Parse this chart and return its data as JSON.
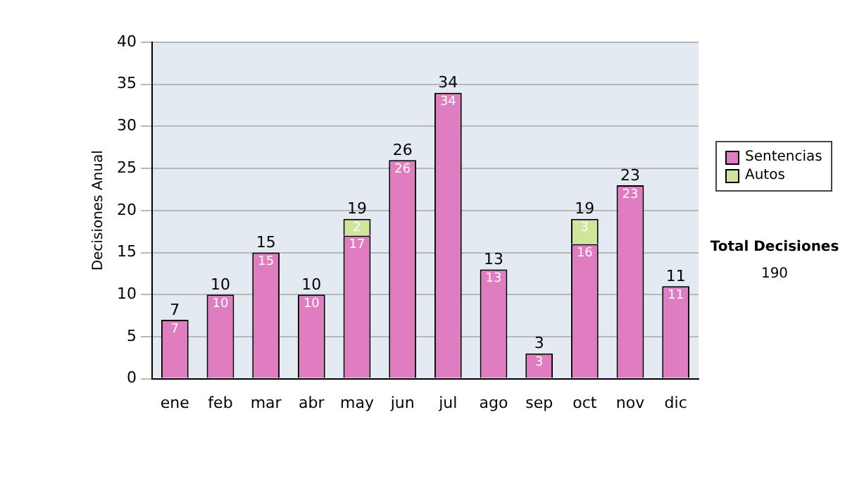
{
  "chart_data": {
    "type": "bar",
    "stacked": true,
    "ylabel": "Decisiones Anual",
    "categories": [
      "ene",
      "feb",
      "mar",
      "abr",
      "may",
      "jun",
      "jul",
      "ago",
      "sep",
      "oct",
      "nov",
      "dic"
    ],
    "series": [
      {
        "name": "Sentencias",
        "color": "#e07cc0",
        "values": [
          7,
          10,
          15,
          10,
          17,
          26,
          34,
          13,
          3,
          16,
          23,
          11
        ]
      },
      {
        "name": "Autos",
        "color": "#cfe59a",
        "values": [
          null,
          null,
          null,
          null,
          2,
          null,
          null,
          null,
          null,
          3,
          null,
          null
        ]
      }
    ],
    "totals": [
      "7",
      "10",
      "15",
      "10",
      "19",
      "26",
      "34",
      "13",
      "3",
      "19",
      "23",
      "11"
    ],
    "data_labels": true,
    "ylim": [
      0,
      40
    ],
    "yticks": [
      0,
      5,
      10,
      15,
      20,
      25,
      30,
      35,
      40
    ],
    "grid": "y",
    "legend": "right",
    "annotations": [
      "Total Decisiones",
      "190"
    ]
  }
}
